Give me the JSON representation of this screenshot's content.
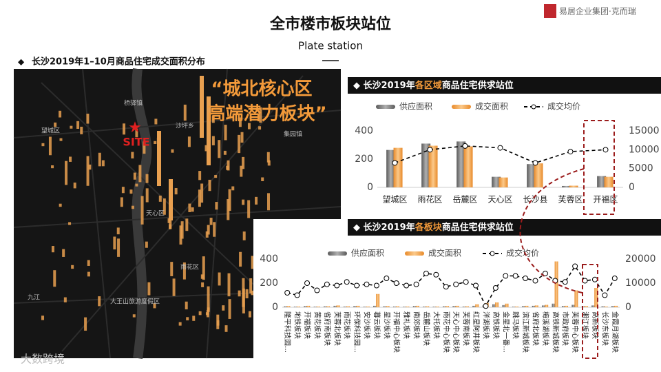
{
  "header": {
    "title": "全市楼市板块站位",
    "subtitle": "Plate station",
    "logo": "易居企业集团·克而瑞"
  },
  "section": "长沙2019年1–10月商品住宅成交面积分布",
  "map": {
    "headline": [
      "“城北核心区",
      "高端潜力板块”"
    ],
    "site": "SITE",
    "places": [
      "桥驿镇",
      "沙坪乡",
      "望城区",
      "集园镇",
      "天心区",
      "雨花区",
      "大王山旅游度假区",
      "九江"
    ]
  },
  "watermark": "大数跨境",
  "chart_data": [
    {
      "type": "bar-line",
      "title_parts": [
        "长沙2019年",
        "各区域",
        "商品住宅供求站位"
      ],
      "categories": [
        "望城区",
        "雨花区",
        "岳麓区",
        "天心区",
        "长沙县",
        "芙蓉区",
        "开福区"
      ],
      "series": [
        {
          "name": "供应面积",
          "color": "#7f7f7f",
          "values": [
            265,
            310,
            325,
            75,
            165,
            10,
            80
          ]
        },
        {
          "name": "成交面积",
          "color": "#f4a24a",
          "values": [
            280,
            295,
            290,
            70,
            170,
            12,
            75
          ]
        },
        {
          "name": "成交均价",
          "color": "#000000",
          "axis": "y2",
          "values": [
            6500,
            10000,
            11000,
            10500,
            6500,
            9500,
            10000
          ]
        }
      ],
      "ylim": [
        0,
        400
      ],
      "yticks": [
        0,
        200,
        400
      ],
      "y2lim": [
        0,
        15000
      ],
      "y2ticks": [
        0,
        5000,
        10000,
        15000
      ]
    },
    {
      "type": "bar-line",
      "title_parts": [
        "长沙2019年",
        "各板块",
        "商品住宅供求站位"
      ],
      "categories": [
        "隆平科技园…",
        "地铁板块",
        "开福板块",
        "黄花板块",
        "省府南板块",
        "芙蓉北板块",
        "雨花板块",
        "环保科技园…",
        "安沙板块",
        "暮云板块",
        "星沙板块",
        "开福中心板块",
        "雅礼板块",
        "南郊板块",
        "岳麓山板块",
        "大托板块",
        "雨花中心板块",
        "天心中心板块",
        "芙蓉南板块",
        "红星阿井板块",
        "洋湖板块",
        "高铁板块",
        "金星北一番…",
        "跳马板块",
        "滨江新城板块",
        "省府北板块",
        "梅溪湖板块",
        "高铁新城板块",
        "市政府板块",
        "芙蓉中心板块",
        "湘江板块",
        "高新板块",
        "长沙东板块",
        "金霞月湖板块"
      ],
      "series": [
        {
          "name": "供应面积",
          "color": "#7f7f7f",
          "values": [
            8,
            5,
            10,
            5,
            8,
            12,
            6,
            10,
            5,
            12,
            8,
            6,
            5,
            10,
            6,
            5,
            8,
            10,
            6,
            12,
            15,
            25,
            18,
            5,
            10,
            12,
            15,
            30,
            10,
            20,
            8,
            15,
            8,
            10
          ]
        },
        {
          "name": "成交面积",
          "color": "#f4a24a",
          "values": [
            10,
            6,
            12,
            6,
            8,
            15,
            8,
            12,
            6,
            110,
            10,
            8,
            6,
            12,
            8,
            6,
            10,
            12,
            8,
            25,
            35,
            40,
            30,
            6,
            12,
            15,
            20,
            380,
            12,
            140,
            10,
            160,
            6,
            12
          ]
        },
        {
          "name": "成交均价",
          "color": "#000000",
          "axis": "y2",
          "values": [
            6000,
            5000,
            10000,
            7000,
            9500,
            9000,
            10500,
            9000,
            9500,
            9000,
            12000,
            10000,
            9000,
            9500,
            14000,
            13500,
            8500,
            9500,
            10500,
            9000,
            500,
            8000,
            13000,
            13000,
            12000,
            11000,
            14000,
            11000,
            10500,
            17000,
            11000,
            11500,
            5000,
            12000
          ]
        }
      ],
      "ylim": [
        0,
        400
      ],
      "yticks": [
        0,
        200,
        400
      ],
      "y2lim": [
        0,
        20000
      ],
      "y2ticks": [
        0,
        10000,
        20000
      ]
    }
  ]
}
